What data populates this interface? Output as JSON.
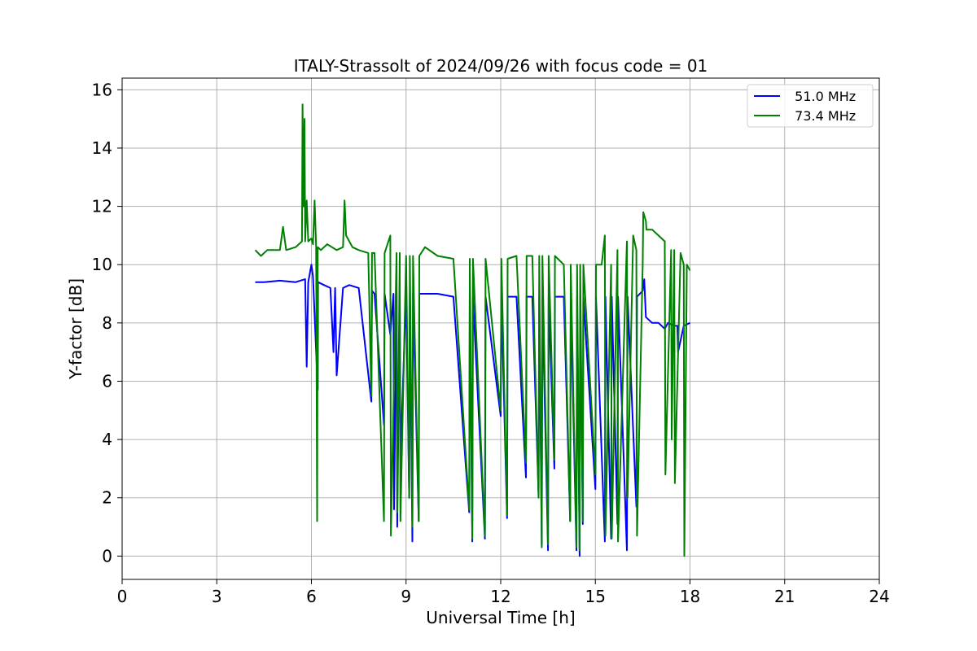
{
  "chart_data": {
    "type": "line",
    "title": "ITALY-Strassolt of 2024/09/26 with focus code = 01",
    "xlabel": "Universal Time [h]",
    "ylabel": "Y-factor [dB]",
    "xlim": [
      0,
      24
    ],
    "ylim": [
      -0.8,
      16.4
    ],
    "xticks": [
      0,
      3,
      6,
      9,
      12,
      15,
      18,
      21,
      24
    ],
    "yticks": [
      0,
      2,
      4,
      6,
      8,
      10,
      12,
      14,
      16
    ],
    "grid": true,
    "legend_position": "top-right",
    "series": [
      {
        "name": "  51.0 MHz",
        "color": "#0000ff",
        "x": [
          4.22,
          4.5,
          5.0,
          5.5,
          5.8,
          5.85,
          5.9,
          6.0,
          6.05,
          6.2,
          6.21,
          6.4,
          6.6,
          6.7,
          6.75,
          6.8,
          7.0,
          7.2,
          7.5,
          7.9,
          7.92,
          8.0,
          8.3,
          8.32,
          8.5,
          8.6,
          8.62,
          8.7,
          8.72,
          8.8,
          8.82,
          9.0,
          9.1,
          9.12,
          9.2,
          9.22,
          9.4,
          9.42,
          10.0,
          10.5,
          11.0,
          11.02,
          11.1,
          11.12,
          11.5,
          11.52,
          12.0,
          12.02,
          12.2,
          12.22,
          12.5,
          12.8,
          12.82,
          13.0,
          13.2,
          13.22,
          13.3,
          13.32,
          13.5,
          13.52,
          13.7,
          13.72,
          14.0,
          14.2,
          14.22,
          14.4,
          14.42,
          14.5,
          14.52,
          14.6,
          14.62,
          15.0,
          15.02,
          15.3,
          15.32,
          15.5,
          15.52,
          15.7,
          15.72,
          16.0,
          16.02,
          16.3,
          16.32,
          16.5,
          16.55,
          16.6,
          16.8,
          17.0,
          17.2,
          17.3,
          17.5,
          17.6,
          17.62,
          17.8,
          18.0
        ],
        "y": [
          9.4,
          9.4,
          9.45,
          9.4,
          9.5,
          6.5,
          9.4,
          10.0,
          9.6,
          5.7,
          9.4,
          9.3,
          9.2,
          7.0,
          9.2,
          6.2,
          9.2,
          9.3,
          9.2,
          5.3,
          9.1,
          9.0,
          4.5,
          9.0,
          7.6,
          9.0,
          1.6,
          9.0,
          1.0,
          9.0,
          3.4,
          9.0,
          2.0,
          9.0,
          0.5,
          9.0,
          1.2,
          9.0,
          9.0,
          8.9,
          1.5,
          8.9,
          0.5,
          8.9,
          0.6,
          8.9,
          4.8,
          8.9,
          1.3,
          8.9,
          8.9,
          2.7,
          8.9,
          8.9,
          2.1,
          8.9,
          0.4,
          8.9,
          0.2,
          8.9,
          3.0,
          8.9,
          8.9,
          1.2,
          8.9,
          0.2,
          8.9,
          0.0,
          8.9,
          1.1,
          8.9,
          2.3,
          8.9,
          0.5,
          8.9,
          0.6,
          8.9,
          1.1,
          8.9,
          0.2,
          8.9,
          1.7,
          8.9,
          9.1,
          9.5,
          8.2,
          8.0,
          8.0,
          7.8,
          8.0,
          7.9,
          7.9,
          7.0,
          7.9,
          8.0
        ]
      },
      {
        "name": "  73.4 MHz",
        "color": "#008000",
        "x": [
          4.22,
          4.4,
          4.6,
          5.0,
          5.1,
          5.2,
          5.5,
          5.7,
          5.72,
          5.75,
          5.78,
          5.8,
          5.85,
          5.9,
          6.0,
          6.05,
          6.1,
          6.15,
          6.18,
          6.2,
          6.3,
          6.5,
          6.8,
          7.0,
          7.05,
          7.1,
          7.3,
          7.5,
          7.8,
          7.9,
          7.92,
          8.0,
          8.3,
          8.32,
          8.5,
          8.52,
          8.7,
          8.72,
          8.8,
          8.82,
          9.0,
          9.1,
          9.12,
          9.2,
          9.22,
          9.4,
          9.42,
          9.6,
          10.0,
          10.5,
          11.0,
          11.02,
          11.1,
          11.12,
          11.5,
          11.52,
          12.0,
          12.02,
          12.2,
          12.22,
          12.5,
          12.8,
          12.82,
          13.0,
          13.2,
          13.22,
          13.3,
          13.32,
          13.5,
          13.52,
          13.7,
          13.72,
          14.0,
          14.2,
          14.22,
          14.4,
          14.42,
          14.5,
          14.52,
          14.6,
          14.62,
          15.0,
          15.02,
          15.2,
          15.3,
          15.32,
          15.5,
          15.52,
          15.7,
          15.72,
          16.0,
          16.02,
          16.2,
          16.3,
          16.32,
          16.5,
          16.52,
          16.6,
          16.62,
          16.8,
          17.0,
          17.2,
          17.22,
          17.4,
          17.42,
          17.5,
          17.52,
          17.7,
          17.8,
          17.82,
          17.9,
          18.0
        ],
        "y": [
          10.5,
          10.3,
          10.5,
          10.5,
          11.3,
          10.5,
          10.6,
          10.8,
          15.5,
          12.0,
          15.0,
          10.8,
          12.2,
          10.8,
          10.9,
          10.7,
          12.2,
          10.6,
          1.2,
          10.6,
          10.5,
          10.7,
          10.5,
          10.6,
          12.2,
          11.0,
          10.6,
          10.5,
          10.4,
          5.5,
          10.4,
          10.4,
          1.2,
          10.4,
          11.0,
          0.7,
          10.4,
          1.5,
          10.4,
          1.2,
          10.3,
          2.0,
          10.3,
          1.0,
          10.3,
          1.2,
          10.3,
          10.6,
          10.3,
          10.2,
          1.6,
          10.2,
          0.6,
          10.2,
          0.7,
          10.2,
          5.0,
          10.2,
          1.4,
          10.2,
          10.3,
          3.2,
          10.3,
          10.3,
          2.0,
          10.3,
          0.3,
          10.3,
          0.4,
          10.3,
          3.3,
          10.3,
          10.0,
          1.2,
          10.0,
          0.3,
          10.0,
          0.2,
          10.0,
          1.2,
          10.0,
          2.8,
          10.0,
          10.0,
          11.0,
          0.7,
          10.0,
          0.6,
          10.5,
          0.5,
          10.8,
          2.0,
          11.0,
          10.5,
          0.7,
          10.0,
          11.8,
          11.5,
          11.2,
          11.2,
          11.0,
          10.8,
          2.8,
          10.5,
          4.0,
          10.5,
          2.5,
          10.4,
          10.0,
          0.0,
          10.0,
          9.8
        ]
      }
    ]
  }
}
